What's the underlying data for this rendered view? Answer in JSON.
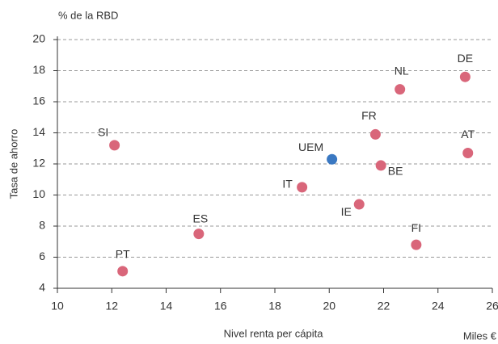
{
  "chart_data": {
    "type": "scatter",
    "unit_label": "% de la RBD",
    "y_label": "Tasa de ahorro",
    "x_label": "Nivel renta per cápita",
    "x_unit_label": "Miles €",
    "labels": [
      "PT",
      "ES",
      "SI",
      "IT",
      "UEM",
      "FR",
      "BE",
      "IE",
      "NL",
      "DE",
      "AT",
      "FI"
    ],
    "x": [
      12.4,
      15.2,
      12.1,
      19.0,
      20.1,
      21.7,
      21.9,
      21.1,
      22.6,
      25.0,
      25.1,
      23.2
    ],
    "y": [
      5.1,
      7.5,
      13.2,
      10.5,
      12.3,
      13.9,
      11.9,
      9.4,
      16.8,
      17.6,
      12.7,
      6.8
    ],
    "colors": [
      "#d9667a",
      "#d9667a",
      "#d9667a",
      "#d9667a",
      "#3a78c2",
      "#d9667a",
      "#d9667a",
      "#d9667a",
      "#d9667a",
      "#d9667a",
      "#d9667a",
      "#d9667a"
    ],
    "xlim": [
      10,
      26
    ],
    "xticks": [
      10,
      12,
      14,
      16,
      18,
      20,
      22,
      24,
      26
    ],
    "ylim": [
      4,
      20
    ],
    "yticks": [
      4,
      6,
      8,
      10,
      12,
      14,
      16,
      18,
      20
    ],
    "grid": true
  }
}
